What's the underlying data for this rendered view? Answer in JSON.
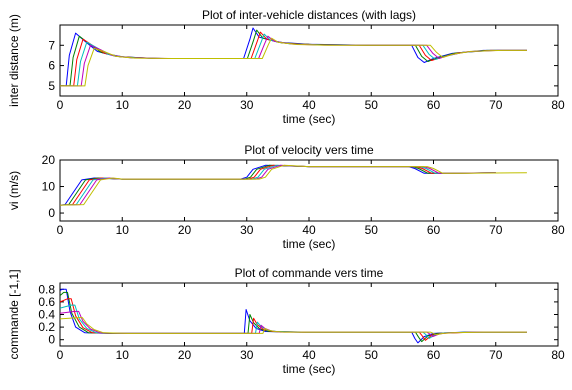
{
  "chart_data": [
    {
      "type": "line",
      "title": "Plot of inter-vehicle distances (with lags)",
      "xlabel": "time (sec)",
      "ylabel": "inter distance (m)",
      "xlim": [
        0,
        80
      ],
      "ylim": [
        4.5,
        8
      ],
      "xticks": [
        0,
        10,
        20,
        30,
        40,
        50,
        60,
        70,
        80
      ],
      "yticks": [
        5,
        6,
        7
      ],
      "grid": false,
      "legend": "none",
      "series": [
        {
          "color": "#0000ff",
          "x": [
            0,
            1,
            1.5,
            2.5,
            4,
            6,
            9,
            15,
            25,
            29.5,
            30.5,
            31,
            32,
            35,
            40,
            50,
            56.5,
            57.5,
            58.5,
            60,
            63,
            68,
            75
          ],
          "y": [
            5.0,
            5.0,
            6.5,
            7.6,
            7.2,
            6.7,
            6.45,
            6.35,
            6.35,
            6.35,
            7.3,
            7.85,
            7.4,
            7.15,
            7.05,
            7.0,
            7.0,
            6.4,
            6.15,
            6.35,
            6.6,
            6.75,
            6.75
          ]
        },
        {
          "color": "#008000",
          "x": [
            0,
            1.6,
            2.1,
            3.1,
            4.6,
            6.6,
            9.6,
            15.6,
            25,
            30.1,
            31.1,
            31.6,
            32.6,
            35.6,
            40.6,
            50,
            57.1,
            58.1,
            59.1,
            60.6,
            63.6,
            68.6,
            75
          ],
          "y": [
            5.0,
            5.0,
            6.4,
            7.45,
            7.1,
            6.65,
            6.43,
            6.35,
            6.35,
            6.35,
            7.25,
            7.75,
            7.35,
            7.12,
            7.04,
            7.0,
            7.0,
            6.45,
            6.2,
            6.38,
            6.62,
            6.75,
            6.75
          ]
        },
        {
          "color": "#ff0000",
          "x": [
            0,
            2.2,
            2.7,
            3.7,
            5.2,
            7.2,
            10.2,
            16.2,
            25,
            30.7,
            31.7,
            32.2,
            33.2,
            36.2,
            41.2,
            50,
            57.7,
            58.7,
            59.7,
            61.2,
            64.2,
            69.2,
            75
          ],
          "y": [
            5.0,
            5.0,
            6.3,
            7.3,
            7.0,
            6.6,
            6.42,
            6.35,
            6.35,
            6.35,
            7.2,
            7.65,
            7.3,
            7.1,
            7.03,
            7.0,
            7.0,
            6.5,
            6.25,
            6.4,
            6.64,
            6.75,
            6.75
          ]
        },
        {
          "color": "#00bfbf",
          "x": [
            0,
            2.8,
            3.3,
            4.3,
            5.8,
            7.8,
            10.8,
            16.8,
            25,
            31.3,
            32.3,
            32.8,
            33.8,
            36.8,
            41.8,
            50,
            58.3,
            59.3,
            60.3,
            61.8,
            64.8,
            69.8,
            75
          ],
          "y": [
            5.0,
            5.0,
            6.2,
            7.15,
            6.9,
            6.55,
            6.4,
            6.35,
            6.35,
            6.35,
            7.15,
            7.55,
            7.25,
            7.08,
            7.02,
            7.0,
            7.0,
            6.55,
            6.3,
            6.45,
            6.66,
            6.75,
            6.75
          ]
        },
        {
          "color": "#bf00bf",
          "x": [
            0,
            3.4,
            3.9,
            4.9,
            6.4,
            8.4,
            11.4,
            17.4,
            25,
            31.9,
            32.9,
            33.4,
            34.4,
            37.4,
            42.4,
            50,
            58.9,
            59.9,
            60.9,
            62.4,
            65.4,
            70.4,
            75
          ],
          "y": [
            5.0,
            5.0,
            6.1,
            7.0,
            6.8,
            6.5,
            6.38,
            6.35,
            6.35,
            6.35,
            7.1,
            7.45,
            7.2,
            7.06,
            7.01,
            7.0,
            7.0,
            6.6,
            6.35,
            6.5,
            6.68,
            6.75,
            6.75
          ]
        },
        {
          "color": "#bfbf00",
          "x": [
            0,
            4.0,
            4.5,
            5.5,
            7.0,
            9.0,
            12.0,
            18.0,
            25,
            32.5,
            33.5,
            34.0,
            35.0,
            38.0,
            43.0,
            50,
            59.5,
            60.5,
            61.5,
            63.0,
            66.0,
            71.0,
            75
          ],
          "y": [
            5.0,
            5.0,
            6.0,
            6.85,
            6.7,
            6.45,
            6.37,
            6.35,
            6.35,
            6.35,
            7.05,
            7.35,
            7.15,
            7.04,
            7.0,
            7.0,
            7.0,
            6.65,
            6.4,
            6.55,
            6.7,
            6.75,
            6.75
          ]
        }
      ]
    },
    {
      "type": "line",
      "title": "Plot of  velocity vers time",
      "xlabel": "time (sec)",
      "ylabel": "vi (m/s)",
      "xlim": [
        0,
        80
      ],
      "ylim": [
        -3,
        20
      ],
      "xticks": [
        0,
        10,
        20,
        30,
        40,
        50,
        60,
        70,
        80
      ],
      "yticks": [
        0,
        10,
        20
      ],
      "grid": false,
      "legend": "none",
      "series": [
        {
          "color": "#0000ff",
          "x": [
            0,
            0.8,
            3.5,
            5.5,
            10,
            29,
            30,
            31,
            33,
            40,
            56,
            57,
            58.5,
            62,
            70
          ],
          "y": [
            3.0,
            3.2,
            12.5,
            13.2,
            12.8,
            12.8,
            13.5,
            16.5,
            18.0,
            17.5,
            17.5,
            16.8,
            15.0,
            15.0,
            15.2
          ]
        },
        {
          "color": "#008000",
          "x": [
            0,
            1.4,
            4.1,
            6.1,
            10,
            29.6,
            30.6,
            31.6,
            33.6,
            40,
            56.6,
            57.6,
            59.1,
            62.6,
            70
          ],
          "y": [
            3.0,
            3.2,
            12.5,
            13.2,
            12.8,
            12.8,
            13.5,
            16.5,
            18.0,
            17.5,
            17.5,
            16.8,
            15.0,
            15.0,
            15.2
          ]
        },
        {
          "color": "#ff0000",
          "x": [
            0,
            2.0,
            4.7,
            6.7,
            10,
            30.2,
            31.2,
            32.2,
            34.2,
            40,
            57.2,
            58.2,
            59.7,
            63.2,
            70
          ],
          "y": [
            3.0,
            3.2,
            12.5,
            13.2,
            12.8,
            12.8,
            13.5,
            16.5,
            18.0,
            17.5,
            17.5,
            16.8,
            15.0,
            15.0,
            15.2
          ]
        },
        {
          "color": "#00bfbf",
          "x": [
            0,
            2.6,
            5.3,
            7.3,
            10,
            30.8,
            31.8,
            32.8,
            34.8,
            40,
            57.8,
            58.8,
            60.3,
            63.8,
            70
          ],
          "y": [
            3.0,
            3.2,
            12.5,
            13.2,
            12.8,
            12.8,
            13.5,
            16.5,
            18.0,
            17.5,
            17.5,
            16.8,
            15.0,
            15.0,
            15.2
          ]
        },
        {
          "color": "#bf00bf",
          "x": [
            0,
            3.2,
            5.9,
            7.9,
            10,
            31.4,
            32.4,
            33.4,
            35.4,
            40,
            58.4,
            59.4,
            60.9,
            64.4,
            70
          ],
          "y": [
            3.0,
            3.2,
            12.5,
            13.2,
            12.8,
            12.8,
            13.5,
            16.5,
            18.0,
            17.5,
            17.5,
            16.8,
            15.0,
            15.0,
            15.2
          ]
        },
        {
          "color": "#bfbf00",
          "x": [
            0,
            3.8,
            6.5,
            8.5,
            10,
            32.0,
            33.0,
            34.0,
            36.0,
            40,
            59.0,
            60.0,
            61.5,
            65.0,
            75
          ],
          "y": [
            3.0,
            3.2,
            12.5,
            13.2,
            12.8,
            12.8,
            13.5,
            16.5,
            18.0,
            17.5,
            17.5,
            16.8,
            15.0,
            15.0,
            15.2
          ]
        }
      ]
    },
    {
      "type": "line",
      "title": "Plot of commande vers time",
      "xlabel": "time (sec)",
      "ylabel": "commande [-1,1]",
      "xlim": [
        0,
        80
      ],
      "ylim": [
        -0.1,
        0.9
      ],
      "xticks": [
        0,
        10,
        20,
        30,
        40,
        50,
        60,
        70,
        80
      ],
      "yticks": [
        0,
        0.2,
        0.4,
        0.6,
        0.8
      ],
      "grid": false,
      "legend": "none",
      "series": [
        {
          "color": "#0000ff",
          "x": [
            0,
            0.3,
            1.0,
            1.6,
            2.5,
            4,
            8,
            22,
            29.6,
            29.9,
            30.5,
            31.5,
            33,
            38,
            56.5,
            57,
            57.5,
            58.5,
            60,
            65,
            75
          ],
          "y": [
            0.78,
            0.8,
            0.8,
            0.45,
            0.2,
            0.11,
            0.1,
            0.1,
            0.1,
            0.48,
            0.3,
            0.18,
            0.13,
            0.12,
            0.12,
            0.02,
            -0.05,
            0.05,
            0.1,
            0.12,
            0.12
          ]
        },
        {
          "color": "#008000",
          "x": [
            0,
            0.6,
            1.2,
            1.9,
            3.1,
            4.6,
            8.6,
            22,
            30.2,
            30.5,
            31.1,
            32.1,
            33.6,
            38.6,
            57.1,
            57.6,
            58.1,
            59.1,
            60.6,
            65.6,
            75
          ],
          "y": [
            0.7,
            0.75,
            0.75,
            0.42,
            0.2,
            0.11,
            0.1,
            0.1,
            0.1,
            0.4,
            0.27,
            0.17,
            0.13,
            0.12,
            0.12,
            0.04,
            -0.03,
            0.06,
            0.1,
            0.12,
            0.12
          ]
        },
        {
          "color": "#ff0000",
          "x": [
            0,
            1.2,
            1.8,
            2.5,
            3.7,
            5.2,
            9.2,
            22,
            30.8,
            31.1,
            31.7,
            32.7,
            34.2,
            39.2,
            57.7,
            58.2,
            58.7,
            59.7,
            61.2,
            66.2,
            75
          ],
          "y": [
            0.6,
            0.65,
            0.65,
            0.38,
            0.19,
            0.11,
            0.1,
            0.1,
            0.1,
            0.34,
            0.24,
            0.16,
            0.13,
            0.12,
            0.12,
            0.06,
            -0.01,
            0.07,
            0.1,
            0.12,
            0.12
          ]
        },
        {
          "color": "#00bfbf",
          "x": [
            0,
            1.8,
            2.4,
            3.1,
            4.3,
            5.8,
            9.8,
            22,
            31.4,
            31.7,
            32.3,
            33.3,
            34.8,
            39.8,
            58.3,
            58.8,
            59.3,
            60.3,
            61.8,
            66.8,
            75
          ],
          "y": [
            0.5,
            0.55,
            0.55,
            0.33,
            0.18,
            0.11,
            0.1,
            0.1,
            0.1,
            0.28,
            0.21,
            0.15,
            0.13,
            0.12,
            0.12,
            0.08,
            0.02,
            0.08,
            0.11,
            0.12,
            0.12
          ]
        },
        {
          "color": "#bf00bf",
          "x": [
            0,
            2.4,
            3.0,
            3.7,
            4.9,
            6.4,
            10.4,
            22,
            32.0,
            32.3,
            32.9,
            33.9,
            35.4,
            40.4,
            58.9,
            59.4,
            59.9,
            60.9,
            62.4,
            67.4,
            75
          ],
          "y": [
            0.42,
            0.45,
            0.45,
            0.29,
            0.17,
            0.11,
            0.1,
            0.1,
            0.1,
            0.23,
            0.18,
            0.14,
            0.12,
            0.12,
            0.12,
            0.09,
            0.05,
            0.09,
            0.11,
            0.12,
            0.12
          ]
        },
        {
          "color": "#bfbf00",
          "x": [
            0,
            3.0,
            3.6,
            4.3,
            5.5,
            7.0,
            11.0,
            22,
            32.6,
            32.9,
            33.5,
            34.5,
            36.0,
            41.0,
            59.5,
            60.0,
            60.5,
            61.5,
            63.0,
            68.0,
            75
          ],
          "y": [
            0.33,
            0.35,
            0.35,
            0.25,
            0.16,
            0.11,
            0.1,
            0.1,
            0.1,
            0.18,
            0.15,
            0.13,
            0.12,
            0.12,
            0.12,
            0.1,
            0.08,
            0.1,
            0.11,
            0.12,
            0.12
          ]
        }
      ]
    }
  ]
}
